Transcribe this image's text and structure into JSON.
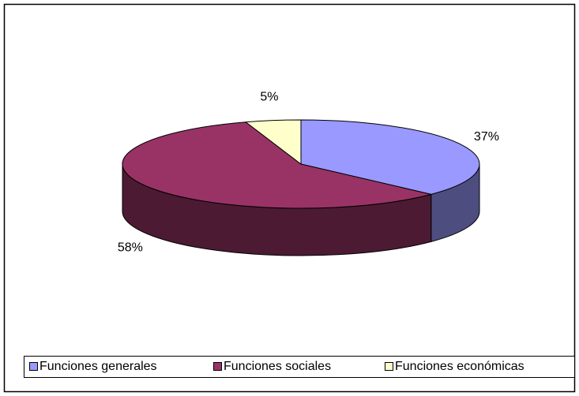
{
  "chart_data": {
    "type": "pie",
    "categories": [
      "Funciones generales",
      "Funciones sociales",
      "Funciones económicas"
    ],
    "values": [
      37,
      58,
      5
    ],
    "value_labels": [
      "37%",
      "58%",
      "5%"
    ],
    "colors": [
      "#9999ff",
      "#993366",
      "#ffffcc"
    ],
    "side_colors": [
      "#4d4d80",
      "#4d1a33",
      "#80806a"
    ],
    "legend": "bottom"
  }
}
